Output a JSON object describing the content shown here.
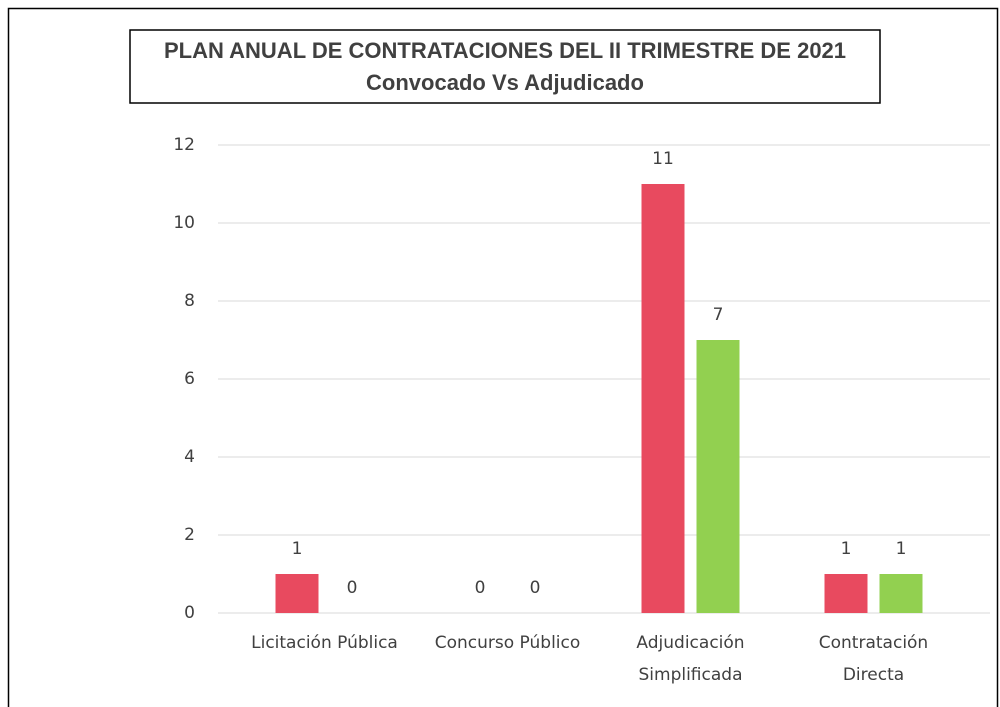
{
  "chart_data": {
    "type": "bar",
    "title": "PLAN ANUAL DE CONTRATACIONES DEL II TRIMESTRE  DE 2021",
    "subtitle": "Convocado Vs Adjudicado",
    "categories": [
      [
        "Licitación Pública"
      ],
      [
        "Concurso Público"
      ],
      [
        "Adjudicación",
        "Simplificada"
      ],
      [
        "Contratación",
        "Directa"
      ]
    ],
    "series": [
      {
        "color": "#e84a5f",
        "values": [
          1,
          0,
          11,
          1
        ]
      },
      {
        "color": "#92d050",
        "values": [
          0,
          0,
          7,
          1
        ]
      }
    ],
    "ylim": [
      0,
      12
    ],
    "yticks": [
      0,
      2,
      4,
      6,
      8,
      10,
      12
    ],
    "grid": true
  }
}
